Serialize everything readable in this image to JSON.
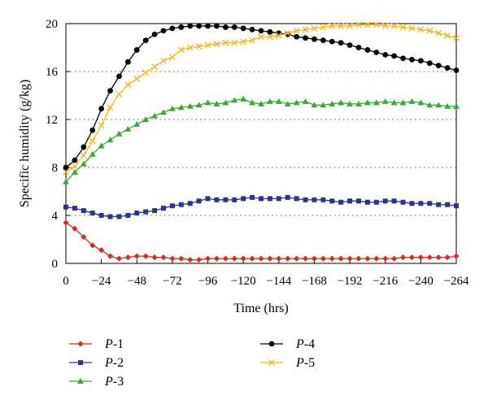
{
  "chart_data": {
    "type": "line",
    "title": "",
    "xlabel": "Time (hrs)",
    "ylabel": "Specific humidity (g/kg)",
    "xlim": [
      0,
      -264
    ],
    "ylim": [
      0,
      20
    ],
    "x_ticks": [
      "0",
      "−24",
      "−48",
      "−72",
      "−96",
      "−120",
      "−144",
      "−168",
      "−192",
      "−216",
      "−240",
      "−264"
    ],
    "y_ticks": [
      "0",
      "4",
      "8",
      "12",
      "16",
      "20"
    ],
    "grid": "horizontal dotted",
    "legend_position": "bottom",
    "x": [
      0,
      -6,
      -12,
      -18,
      -24,
      -30,
      -36,
      -42,
      -48,
      -54,
      -60,
      -66,
      -72,
      -78,
      -84,
      -90,
      -96,
      -102,
      -108,
      -114,
      -120,
      -126,
      -132,
      -138,
      -144,
      -150,
      -156,
      -162,
      -168,
      -174,
      -180,
      -186,
      -192,
      -198,
      -204,
      -210,
      -216,
      -222,
      -228,
      -234,
      -240,
      -246,
      -252,
      -258,
      -264
    ],
    "series": [
      {
        "name_prefix": "P",
        "name_suffix": "-1",
        "color": "#d62b1f",
        "marker": "diamond",
        "values": [
          3.4,
          2.9,
          2.2,
          1.5,
          1.1,
          0.6,
          0.4,
          0.5,
          0.6,
          0.6,
          0.5,
          0.5,
          0.4,
          0.4,
          0.3,
          0.3,
          0.4,
          0.4,
          0.4,
          0.4,
          0.4,
          0.4,
          0.4,
          0.4,
          0.4,
          0.4,
          0.4,
          0.4,
          0.4,
          0.4,
          0.4,
          0.4,
          0.4,
          0.4,
          0.4,
          0.4,
          0.4,
          0.4,
          0.5,
          0.5,
          0.5,
          0.5,
          0.5,
          0.5,
          0.6
        ]
      },
      {
        "name_prefix": "P",
        "name_suffix": "-2",
        "color": "#2e3192",
        "marker": "square",
        "values": [
          4.7,
          4.6,
          4.4,
          4.2,
          4.0,
          3.9,
          3.9,
          4.0,
          4.2,
          4.3,
          4.4,
          4.6,
          4.8,
          4.9,
          5.0,
          5.2,
          5.4,
          5.3,
          5.3,
          5.3,
          5.4,
          5.5,
          5.4,
          5.4,
          5.4,
          5.5,
          5.4,
          5.3,
          5.3,
          5.3,
          5.2,
          5.1,
          5.2,
          5.2,
          5.1,
          5.1,
          5.2,
          5.2,
          5.1,
          5.0,
          5.0,
          5.0,
          4.9,
          4.9,
          4.8
        ]
      },
      {
        "name_prefix": "P",
        "name_suffix": "-3",
        "color": "#3aa935",
        "marker": "triangle",
        "values": [
          6.8,
          7.6,
          8.3,
          9.1,
          9.8,
          10.3,
          10.8,
          11.2,
          11.6,
          12.0,
          12.3,
          12.6,
          12.9,
          13.0,
          13.1,
          13.2,
          13.4,
          13.3,
          13.4,
          13.6,
          13.7,
          13.4,
          13.3,
          13.5,
          13.5,
          13.3,
          13.4,
          13.5,
          13.2,
          13.2,
          13.3,
          13.4,
          13.3,
          13.3,
          13.4,
          13.4,
          13.5,
          13.4,
          13.4,
          13.5,
          13.4,
          13.2,
          13.2,
          13.1,
          13.1
        ]
      },
      {
        "name_prefix": "P",
        "name_suffix": "-4",
        "color": "#000000",
        "marker": "circle",
        "values": [
          8.0,
          8.6,
          9.7,
          11.1,
          12.9,
          14.4,
          15.6,
          16.8,
          17.8,
          18.6,
          19.1,
          19.4,
          19.6,
          19.7,
          19.8,
          19.8,
          19.8,
          19.8,
          19.7,
          19.7,
          19.6,
          19.5,
          19.4,
          19.3,
          19.2,
          19.1,
          18.9,
          18.8,
          18.7,
          18.6,
          18.5,
          18.4,
          18.2,
          18.0,
          17.8,
          17.6,
          17.4,
          17.3,
          17.1,
          17.0,
          16.9,
          16.7,
          16.5,
          16.3,
          16.1
        ]
      },
      {
        "name_prefix": "P",
        "name_suffix": "-5",
        "color": "#f2b81e",
        "marker": "x",
        "values": [
          7.6,
          8.1,
          9.0,
          10.2,
          11.5,
          13.0,
          14.1,
          14.9,
          15.4,
          15.9,
          16.4,
          16.9,
          17.2,
          17.8,
          18.0,
          18.1,
          18.2,
          18.3,
          18.4,
          18.4,
          18.5,
          18.6,
          18.9,
          18.9,
          19.0,
          19.2,
          19.4,
          19.5,
          19.6,
          19.7,
          19.8,
          19.8,
          19.8,
          19.9,
          19.9,
          19.9,
          19.8,
          19.8,
          19.7,
          19.6,
          19.5,
          19.4,
          19.2,
          19.0,
          18.8
        ]
      }
    ]
  }
}
